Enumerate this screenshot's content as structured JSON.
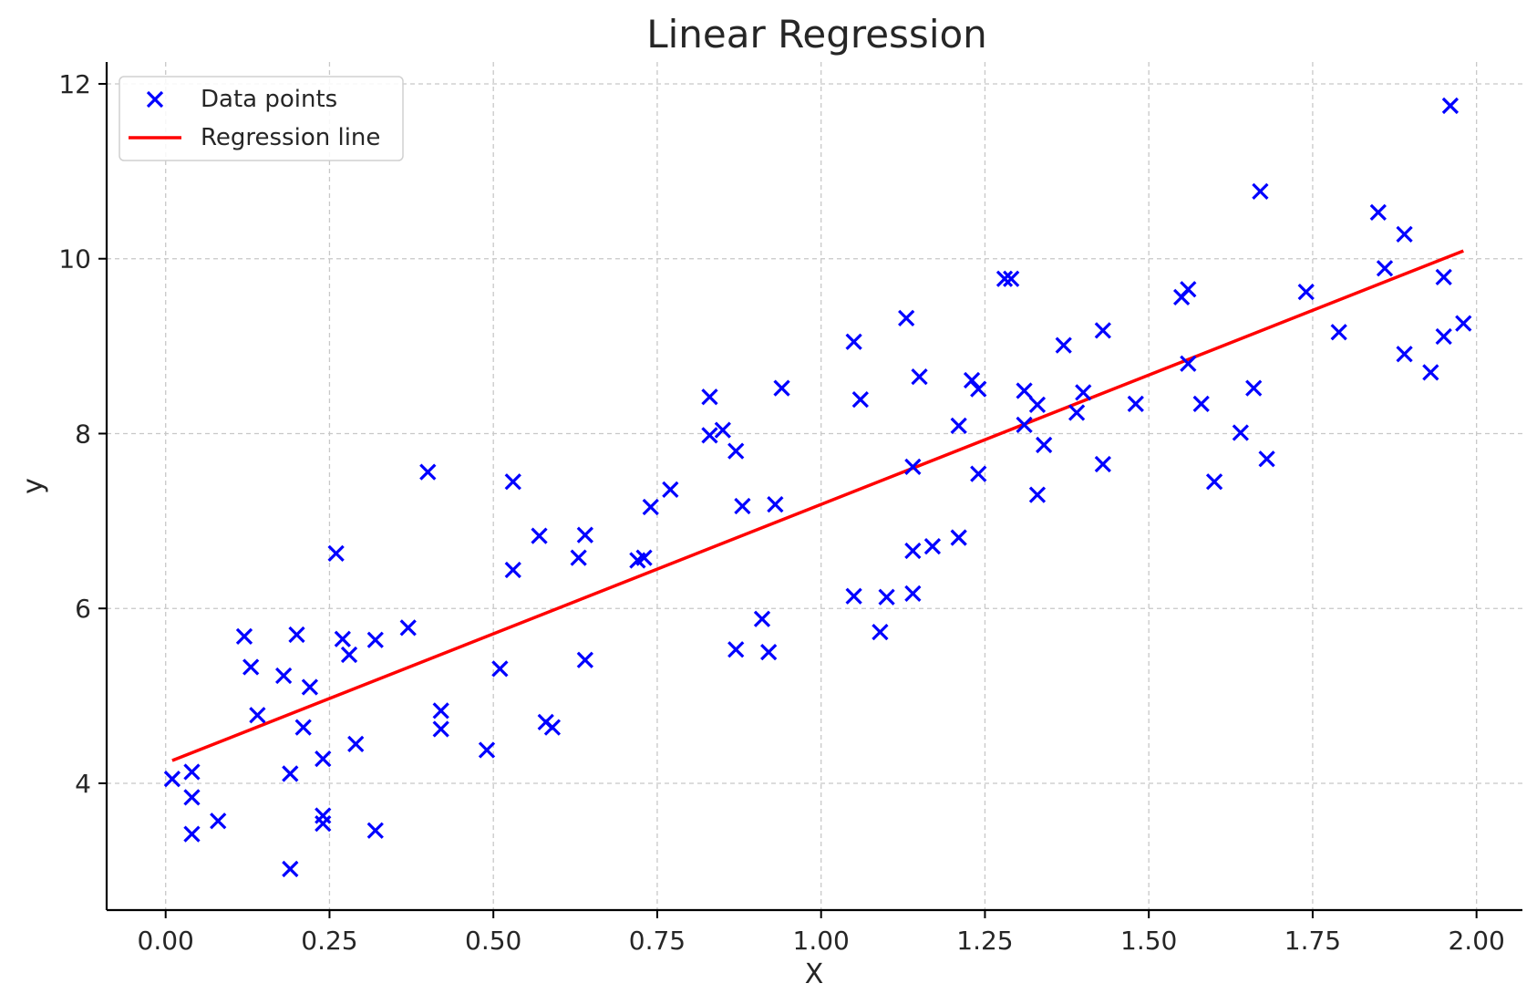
{
  "chart_data": {
    "type": "scatter",
    "title": "Linear Regression",
    "xlabel": "X",
    "ylabel": "y",
    "xlim": [
      -0.09,
      2.07
    ],
    "ylim": [
      2.55,
      12.25
    ],
    "xticks": [
      0.0,
      0.25,
      0.5,
      0.75,
      1.0,
      1.25,
      1.5,
      1.75,
      2.0
    ],
    "xtick_labels": [
      "0.00",
      "0.25",
      "0.50",
      "0.75",
      "1.00",
      "1.25",
      "1.50",
      "1.75",
      "2.00"
    ],
    "yticks": [
      4,
      6,
      8,
      10,
      12
    ],
    "ytick_labels": [
      "4",
      "6",
      "8",
      "10",
      "12"
    ],
    "grid": true,
    "legend": {
      "position": "top-left",
      "entries": [
        {
          "label": "Data points",
          "marker": "x",
          "color": "#0000ff"
        },
        {
          "label": "Regression line",
          "marker": "line",
          "color": "#ff0000"
        }
      ]
    },
    "series": [
      {
        "name": "Data points",
        "kind": "scatter",
        "marker": "x",
        "color": "#0000ff",
        "points": [
          [
            0.01,
            4.05
          ],
          [
            0.04,
            4.13
          ],
          [
            0.04,
            3.84
          ],
          [
            0.04,
            3.42
          ],
          [
            0.08,
            3.57
          ],
          [
            0.12,
            5.68
          ],
          [
            0.13,
            5.33
          ],
          [
            0.14,
            4.78
          ],
          [
            0.18,
            5.23
          ],
          [
            0.19,
            3.02
          ],
          [
            0.19,
            4.11
          ],
          [
            0.2,
            5.7
          ],
          [
            0.21,
            4.64
          ],
          [
            0.22,
            5.1
          ],
          [
            0.24,
            4.28
          ],
          [
            0.24,
            3.63
          ],
          [
            0.24,
            3.54
          ],
          [
            0.26,
            6.63
          ],
          [
            0.27,
            5.65
          ],
          [
            0.28,
            5.47
          ],
          [
            0.29,
            4.45
          ],
          [
            0.32,
            3.46
          ],
          [
            0.32,
            5.64
          ],
          [
            0.37,
            5.78
          ],
          [
            0.4,
            7.56
          ],
          [
            0.42,
            4.83
          ],
          [
            0.42,
            4.62
          ],
          [
            0.49,
            4.38
          ],
          [
            0.51,
            5.31
          ],
          [
            0.53,
            7.45
          ],
          [
            0.53,
            6.44
          ],
          [
            0.57,
            6.83
          ],
          [
            0.58,
            4.7
          ],
          [
            0.59,
            4.64
          ],
          [
            0.63,
            6.58
          ],
          [
            0.64,
            6.84
          ],
          [
            0.64,
            5.41
          ],
          [
            0.72,
            6.55
          ],
          [
            0.73,
            6.58
          ],
          [
            0.74,
            7.16
          ],
          [
            0.77,
            7.36
          ],
          [
            0.83,
            8.42
          ],
          [
            0.83,
            7.98
          ],
          [
            0.85,
            8.04
          ],
          [
            0.87,
            7.8
          ],
          [
            0.87,
            5.53
          ],
          [
            0.88,
            7.17
          ],
          [
            0.91,
            5.88
          ],
          [
            0.92,
            5.5
          ],
          [
            0.93,
            7.19
          ],
          [
            0.94,
            8.52
          ],
          [
            1.05,
            9.05
          ],
          [
            1.05,
            6.14
          ],
          [
            1.06,
            8.39
          ],
          [
            1.09,
            5.73
          ],
          [
            1.1,
            6.13
          ],
          [
            1.13,
            9.32
          ],
          [
            1.14,
            7.62
          ],
          [
            1.14,
            6.66
          ],
          [
            1.14,
            6.17
          ],
          [
            1.15,
            8.65
          ],
          [
            1.17,
            6.71
          ],
          [
            1.21,
            8.09
          ],
          [
            1.21,
            6.81
          ],
          [
            1.23,
            8.61
          ],
          [
            1.24,
            8.51
          ],
          [
            1.24,
            7.54
          ],
          [
            1.28,
            9.77
          ],
          [
            1.29,
            9.77
          ],
          [
            1.31,
            8.49
          ],
          [
            1.31,
            8.1
          ],
          [
            1.33,
            8.33
          ],
          [
            1.33,
            7.3
          ],
          [
            1.34,
            7.87
          ],
          [
            1.37,
            9.01
          ],
          [
            1.39,
            8.24
          ],
          [
            1.4,
            8.47
          ],
          [
            1.43,
            9.18
          ],
          [
            1.43,
            7.65
          ],
          [
            1.48,
            8.34
          ],
          [
            1.55,
            9.56
          ],
          [
            1.56,
            9.65
          ],
          [
            1.56,
            8.8
          ],
          [
            1.58,
            8.34
          ],
          [
            1.6,
            7.45
          ],
          [
            1.64,
            8.01
          ],
          [
            1.66,
            8.52
          ],
          [
            1.67,
            10.77
          ],
          [
            1.68,
            7.71
          ],
          [
            1.74,
            9.62
          ],
          [
            1.79,
            9.16
          ],
          [
            1.85,
            10.53
          ],
          [
            1.86,
            9.89
          ],
          [
            1.89,
            10.28
          ],
          [
            1.89,
            8.91
          ],
          [
            1.93,
            8.7
          ],
          [
            1.95,
            9.79
          ],
          [
            1.95,
            9.11
          ],
          [
            1.96,
            11.75
          ],
          [
            1.98,
            9.26
          ]
        ]
      },
      {
        "name": "Regression line",
        "kind": "line",
        "color": "#ff0000",
        "points": [
          [
            0.01,
            4.26
          ],
          [
            1.98,
            10.09
          ]
        ]
      }
    ]
  }
}
